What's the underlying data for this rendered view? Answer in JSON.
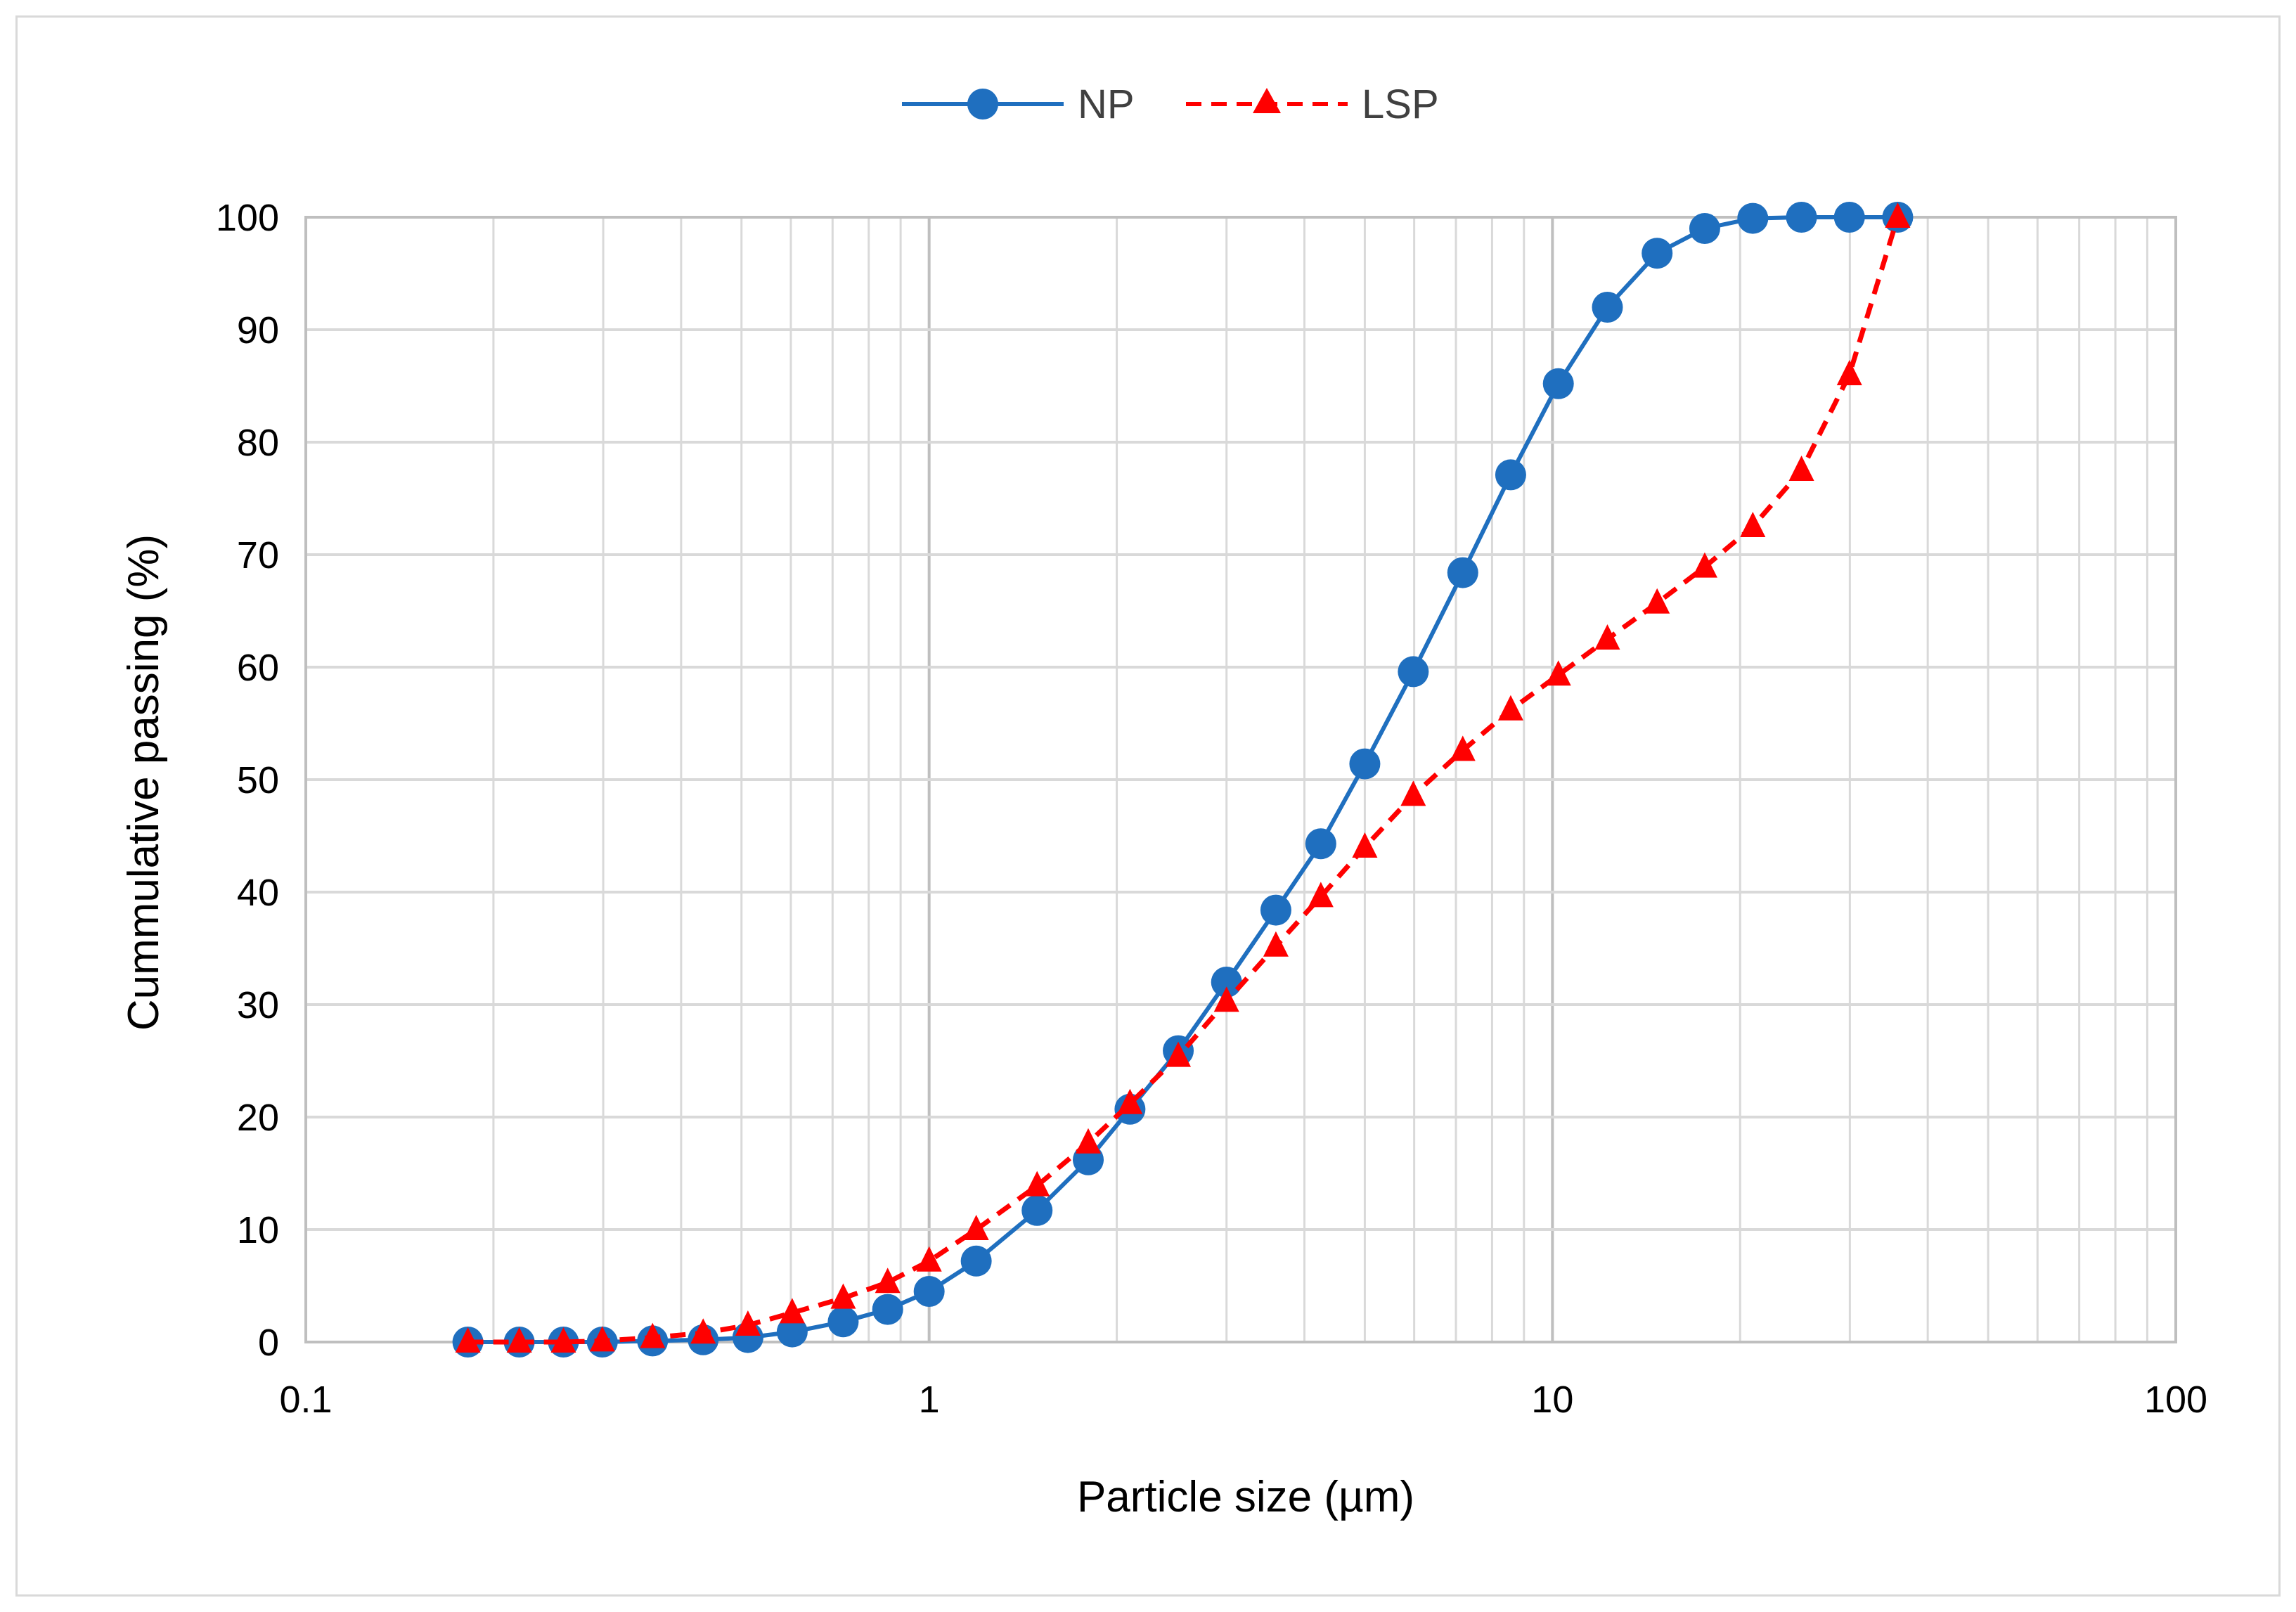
{
  "chart_data": {
    "type": "line",
    "title": "",
    "xlabel": "Particle size (µm)",
    "ylabel": "Cummulative passing (%)",
    "xscale": "log",
    "xlim": [
      0.1,
      100
    ],
    "ylim": [
      0,
      100
    ],
    "x_ticks": [
      0.1,
      1,
      10,
      100
    ],
    "x_tick_labels": [
      "0.1",
      "1",
      "10",
      "100"
    ],
    "y_ticks": [
      0,
      10,
      20,
      30,
      40,
      50,
      60,
      70,
      80,
      90,
      100
    ],
    "y_tick_labels": [
      "0",
      "10",
      "20",
      "30",
      "40",
      "50",
      "60",
      "70",
      "80",
      "90",
      "100"
    ],
    "grid": true,
    "legend_position": "top-center",
    "series": [
      {
        "name": "NP",
        "color": "#1f6fbf",
        "marker": "circle",
        "line_style": "solid",
        "x": [
          0.182,
          0.22,
          0.259,
          0.299,
          0.36,
          0.434,
          0.512,
          0.603,
          0.728,
          0.858,
          1.0,
          1.19,
          1.49,
          1.8,
          2.1,
          2.51,
          3.0,
          3.6,
          4.25,
          5.0,
          5.98,
          7.18,
          8.57,
          10.22,
          12.25,
          14.72,
          17.55,
          20.96,
          25.09,
          29.95,
          35.8
        ],
        "y": [
          0.0,
          0.0,
          0.0,
          0.0,
          0.1,
          0.2,
          0.4,
          0.9,
          1.8,
          2.9,
          4.5,
          7.2,
          11.7,
          16.2,
          20.7,
          25.9,
          32.0,
          38.4,
          44.3,
          51.4,
          59.6,
          68.4,
          77.1,
          85.2,
          92.0,
          96.8,
          99.0,
          99.9,
          100.0,
          100.0,
          100.0
        ]
      },
      {
        "name": "LSP",
        "color": "#ff0000",
        "marker": "triangle",
        "line_style": "dashed",
        "x": [
          0.182,
          0.22,
          0.259,
          0.299,
          0.36,
          0.434,
          0.512,
          0.603,
          0.728,
          0.858,
          1.0,
          1.19,
          1.49,
          1.8,
          2.1,
          2.51,
          3.0,
          3.6,
          4.25,
          5.0,
          5.98,
          7.18,
          8.57,
          10.22,
          12.25,
          14.72,
          17.55,
          20.96,
          25.09,
          29.95,
          35.8
        ],
        "y": [
          0.0,
          0.0,
          0.0,
          0.1,
          0.4,
          0.8,
          1.5,
          2.6,
          3.9,
          5.3,
          7.2,
          10.0,
          13.9,
          17.7,
          21.2,
          25.4,
          30.3,
          35.2,
          39.6,
          44.0,
          48.6,
          52.6,
          56.2,
          59.3,
          62.5,
          65.7,
          68.9,
          72.5,
          77.5,
          86.0,
          100.0
        ]
      }
    ]
  }
}
